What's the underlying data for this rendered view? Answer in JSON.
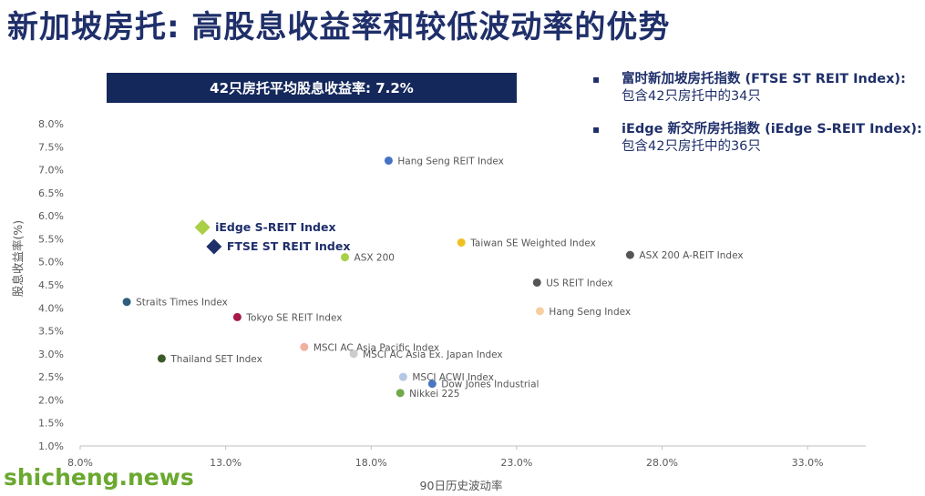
{
  "header": {
    "title": "新加坡房托: 高股息收益率和较低波动率的优势",
    "banner": "42只房托平均股息收益率: 7.2%"
  },
  "bullets": [
    {
      "marker": "▪",
      "title": "富时新加坡房托指数 (FTSE ST REIT Index):",
      "subtitle": "包含42只房托中的34只"
    },
    {
      "marker": "▪",
      "title": "iEdge 新交所房托指数 (iEdge S-REIT Index):",
      "subtitle": "包含42只房托中的36只"
    }
  ],
  "watermark": "shicheng.news",
  "chart_data": {
    "type": "scatter",
    "xlabel": "90日历史波动率",
    "ylabel": "股息收益率(%)",
    "xlim": [
      8.0,
      35.0
    ],
    "ylim": [
      1.0,
      8.0
    ],
    "xticks": [
      8.0,
      13.0,
      18.0,
      23.0,
      28.0,
      33.0
    ],
    "xtick_labels": [
      "8.0%",
      "13.0%",
      "18.0%",
      "23.0%",
      "28.0%",
      "33.0%"
    ],
    "yticks": [
      1.0,
      1.5,
      2.0,
      2.5,
      3.0,
      3.5,
      4.0,
      4.5,
      5.0,
      5.5,
      6.0,
      6.5,
      7.0,
      7.5,
      8.0
    ],
    "ytick_labels": [
      "1.0%",
      "1.5%",
      "2.0%",
      "2.5%",
      "3.0%",
      "3.5%",
      "4.0%",
      "4.5%",
      "5.0%",
      "5.5%",
      "6.0%",
      "6.5%",
      "7.0%",
      "7.5%",
      "8.0%"
    ],
    "grid": false,
    "points": [
      {
        "label": "Hang Seng REIT Index",
        "x": 18.6,
        "y": 7.2,
        "color": "#4472c4",
        "marker": "circle",
        "bold": false
      },
      {
        "label": "iEdge S-REIT Index",
        "x": 12.2,
        "y": 5.75,
        "color": "#a9d046",
        "marker": "diamond",
        "bold": true
      },
      {
        "label": "FTSE ST REIT Index",
        "x": 12.6,
        "y": 5.33,
        "color": "#1f2f6a",
        "marker": "diamond",
        "bold": true
      },
      {
        "label": "Taiwan SE Weighted Index",
        "x": 21.1,
        "y": 5.42,
        "color": "#f0c020",
        "marker": "circle",
        "bold": false
      },
      {
        "label": "ASX 200 A-REIT Index",
        "x": 26.9,
        "y": 5.15,
        "color": "#555555",
        "marker": "circle",
        "bold": false
      },
      {
        "label": "ASX 200",
        "x": 17.1,
        "y": 5.1,
        "color": "#a9d046",
        "marker": "circle",
        "bold": false
      },
      {
        "label": "US REIT Index",
        "x": 23.7,
        "y": 4.55,
        "color": "#555555",
        "marker": "circle",
        "bold": false
      },
      {
        "label": "Straits Times Index",
        "x": 9.6,
        "y": 4.13,
        "color": "#2e5f7a",
        "marker": "circle",
        "bold": false
      },
      {
        "label": "Hang Seng Index",
        "x": 23.8,
        "y": 3.93,
        "color": "#f8cfa0",
        "marker": "circle",
        "bold": false
      },
      {
        "label": "Tokyo SE REIT Index",
        "x": 13.4,
        "y": 3.8,
        "color": "#a8184a",
        "marker": "circle",
        "bold": false
      },
      {
        "label": "MSCI AC Asia Pacific Index",
        "x": 15.7,
        "y": 3.15,
        "color": "#f0b0a0",
        "marker": "circle",
        "bold": false
      },
      {
        "label": "MSCI AC Asia Ex. Japan Index",
        "x": 17.4,
        "y": 3.0,
        "color": "#cccccc",
        "marker": "circle",
        "bold": false
      },
      {
        "label": "Thailand SET Index",
        "x": 10.8,
        "y": 2.9,
        "color": "#3c5a28",
        "marker": "circle",
        "bold": false
      },
      {
        "label": "MSCI ACWI Index",
        "x": 19.1,
        "y": 2.5,
        "color": "#b4c8e4",
        "marker": "circle",
        "bold": false
      },
      {
        "label": "Dow Jones Industrial",
        "x": 20.1,
        "y": 2.35,
        "color": "#4a78c0",
        "marker": "circle",
        "bold": false
      },
      {
        "label": "Nikkei 225",
        "x": 19.0,
        "y": 2.15,
        "color": "#70a84a",
        "marker": "circle",
        "bold": false
      }
    ]
  }
}
